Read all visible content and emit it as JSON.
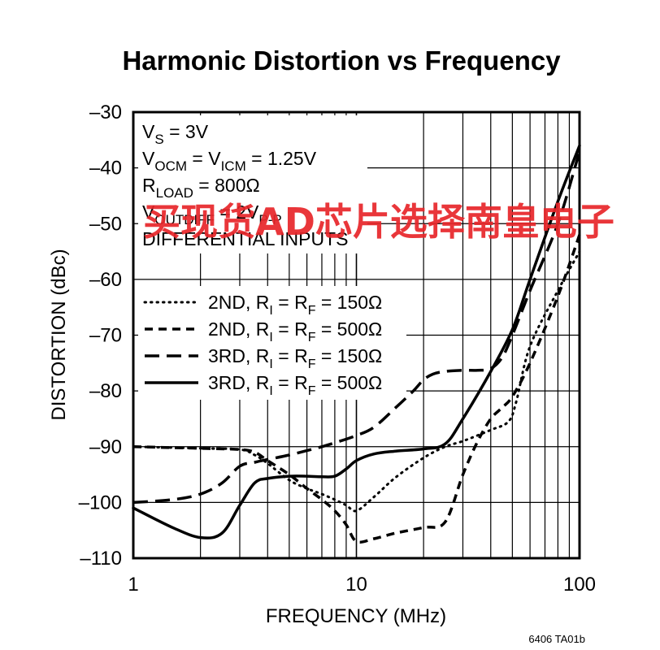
{
  "chart_data": {
    "type": "line",
    "title": "Harmonic Distortion vs Frequency",
    "xlabel": "FREQUENCY (MHz)",
    "ylabel": "DISTORTION (dBc)",
    "x_scale": "log",
    "xlim": [
      1,
      100
    ],
    "ylim": [
      -110,
      -30
    ],
    "x_ticks": [
      "1",
      "10",
      "100"
    ],
    "y_ticks": [
      "–30",
      "–40",
      "–50",
      "–60",
      "–70",
      "–80",
      "–90",
      "–100",
      "–110"
    ],
    "grid": true,
    "legend_position": "left",
    "series": [
      {
        "name": "2ND, RI = RF = 150Ω",
        "dash": "dotted",
        "x": [
          1,
          2,
          3,
          3.5,
          4,
          5,
          6,
          7,
          8,
          9,
          10,
          12,
          15,
          20,
          25,
          30,
          40,
          48,
          52,
          60,
          80,
          100
        ],
        "y": [
          -90,
          -90.3,
          -90.5,
          -91.5,
          -93,
          -96,
          -97.5,
          -98.5,
          -99.5,
          -100.5,
          -101.5,
          -99,
          -95.5,
          -92,
          -90,
          -89,
          -87,
          -85.5,
          -82,
          -72,
          -62,
          -55
        ]
      },
      {
        "name": "2ND, RI = RF = 500Ω",
        "dash": "short-dash",
        "x": [
          1,
          2,
          3,
          3.5,
          4,
          5,
          6,
          7,
          8,
          9,
          10,
          12,
          15,
          20,
          25,
          30,
          35,
          40,
          45,
          50,
          60,
          80,
          100
        ],
        "y": [
          -90,
          -90.3,
          -90.5,
          -91,
          -92.5,
          -95,
          -97.5,
          -99.5,
          -101.5,
          -104,
          -107,
          -106.5,
          -105.5,
          -104.5,
          -103.5,
          -95,
          -89,
          -85,
          -83,
          -81,
          -75,
          -63,
          -52
        ]
      },
      {
        "name": "3RD, RI = RF = 150Ω",
        "dash": "long-dash",
        "x": [
          1,
          1.5,
          2,
          2.5,
          3,
          3.5,
          4,
          5,
          6,
          7,
          8,
          10,
          12,
          15,
          18,
          20,
          22,
          25,
          30,
          35,
          40,
          45,
          50,
          60,
          80,
          100
        ],
        "y": [
          -100,
          -99.5,
          -98.5,
          -96.5,
          -93.5,
          -92.8,
          -92.3,
          -91.5,
          -90.7,
          -90,
          -89.3,
          -88,
          -86.5,
          -83,
          -80,
          -78,
          -77,
          -76.5,
          -76.3,
          -76.3,
          -76,
          -74,
          -70,
          -62,
          -50,
          -37
        ]
      },
      {
        "name": "3RD, RI = RF = 500Ω",
        "dash": "solid",
        "x": [
          1,
          1.5,
          2,
          2.5,
          3,
          3.5,
          4,
          5,
          6,
          7,
          8,
          9,
          10,
          12,
          15,
          20,
          25,
          30,
          40,
          50,
          60,
          80,
          100
        ],
        "y": [
          -101,
          -104.5,
          -106.3,
          -105.5,
          -100.5,
          -96.5,
          -95.7,
          -95.3,
          -95.3,
          -95.4,
          -95.3,
          -94,
          -92.5,
          -91.3,
          -90.8,
          -90.4,
          -89.5,
          -85,
          -76.5,
          -69,
          -60,
          -46,
          -36
        ]
      }
    ],
    "conditions": [
      "V",
      "S",
      " = 3V",
      "V",
      "OCM",
      " = V",
      "ICM",
      " = 1.25V",
      "R",
      "LOAD",
      " = 800Ω",
      "V",
      "OUTDIFF",
      " = 2V",
      "P-P",
      "DIFFERENTIAL INPUTS"
    ],
    "legend_parts": {
      "label_2nd": "2ND, R",
      "label_3rd": "3RD, R",
      "sub_i": "I",
      "mid": " = R",
      "sub_f": "F",
      "val_150": " = 150Ω",
      "val_500": " = 500Ω"
    },
    "footnote": "6406 TA01b"
  },
  "watermark": "买现货AD芯片选择南皇电子"
}
